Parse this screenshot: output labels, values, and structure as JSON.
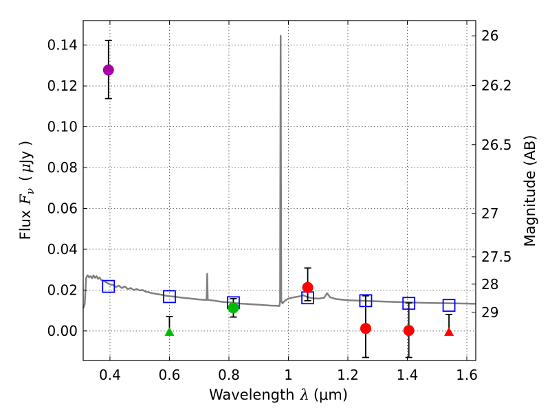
{
  "chart_data": {
    "type": "scatter",
    "xlabel_prefix": "Wavelength",
    "xlabel_symbol": "λ",
    "xlabel_unit": "(μm)",
    "ylabel_prefix": "Flux",
    "ylabel_symbol": "F",
    "ylabel_sub": "ν",
    "ylabel_unit_open": "(",
    "ylabel_unit_mu": "μ",
    "ylabel_unit_rest": "Jy )",
    "y2label": "Magnitude (AB)",
    "xlim": [
      0.31,
      1.63
    ],
    "ylim": [
      -0.0145,
      0.152
    ],
    "xticks": [
      {
        "v": 0.4,
        "label": "0.4"
      },
      {
        "v": 0.6,
        "label": "0.6"
      },
      {
        "v": 0.8,
        "label": "0.8"
      },
      {
        "v": 1.0,
        "label": "1"
      },
      {
        "v": 1.2,
        "label": "1.2"
      },
      {
        "v": 1.4,
        "label": "1.4"
      },
      {
        "v": 1.6,
        "label": "1.6"
      }
    ],
    "yticks": [
      {
        "v": 0.0,
        "label": "0.00"
      },
      {
        "v": 0.02,
        "label": "0.02"
      },
      {
        "v": 0.04,
        "label": "0.04"
      },
      {
        "v": 0.06,
        "label": "0.06"
      },
      {
        "v": 0.08,
        "label": "0.08"
      },
      {
        "v": 0.1,
        "label": "0.10"
      },
      {
        "v": 0.12,
        "label": "0.12"
      },
      {
        "v": 0.14,
        "label": "0.14"
      }
    ],
    "y2ticks": [
      {
        "mag": 26,
        "label": "26"
      },
      {
        "mag": 26.2,
        "label": "26.2"
      },
      {
        "mag": 26.5,
        "label": "26.5"
      },
      {
        "mag": 27,
        "label": "27"
      },
      {
        "mag": 27.5,
        "label": "27.5"
      },
      {
        "mag": 28,
        "label": "28"
      },
      {
        "mag": 29,
        "label": "29"
      }
    ],
    "colors": {
      "sed": "#808080",
      "model": "#0000ff",
      "purple": "#aa00aa",
      "green": "#00bb00",
      "red": "#ff0000",
      "errorbar": "#000000"
    },
    "sed_spectrum": [
      [
        0.31,
        0.011
      ],
      [
        0.315,
        0.013
      ],
      [
        0.32,
        0.026
      ],
      [
        0.325,
        0.0272
      ],
      [
        0.33,
        0.0262
      ],
      [
        0.335,
        0.0268
      ],
      [
        0.34,
        0.0258
      ],
      [
        0.345,
        0.0272
      ],
      [
        0.35,
        0.026
      ],
      [
        0.355,
        0.0268
      ],
      [
        0.36,
        0.0255
      ],
      [
        0.365,
        0.0262
      ],
      [
        0.37,
        0.025
      ],
      [
        0.38,
        0.0245
      ],
      [
        0.39,
        0.0235
      ],
      [
        0.4,
        0.0228
      ],
      [
        0.41,
        0.0225
      ],
      [
        0.42,
        0.0215
      ],
      [
        0.43,
        0.0222
      ],
      [
        0.44,
        0.021
      ],
      [
        0.45,
        0.0218
      ],
      [
        0.46,
        0.0205
      ],
      [
        0.47,
        0.021
      ],
      [
        0.48,
        0.02
      ],
      [
        0.49,
        0.0205
      ],
      [
        0.5,
        0.0198
      ],
      [
        0.51,
        0.02
      ],
      [
        0.52,
        0.0192
      ],
      [
        0.53,
        0.019
      ],
      [
        0.54,
        0.0185
      ],
      [
        0.55,
        0.0183
      ],
      [
        0.56,
        0.018
      ],
      [
        0.57,
        0.0178
      ],
      [
        0.58,
        0.0175
      ],
      [
        0.59,
        0.0172
      ],
      [
        0.6,
        0.017
      ],
      [
        0.62,
        0.0167
      ],
      [
        0.64,
        0.0163
      ],
      [
        0.66,
        0.016
      ],
      [
        0.68,
        0.0157
      ],
      [
        0.7,
        0.0154
      ],
      [
        0.72,
        0.0152
      ],
      [
        0.725,
        0.0152
      ],
      [
        0.727,
        0.028
      ],
      [
        0.729,
        0.0152
      ],
      [
        0.74,
        0.015
      ],
      [
        0.76,
        0.0146
      ],
      [
        0.78,
        0.0142
      ],
      [
        0.8,
        0.014
      ],
      [
        0.82,
        0.0137
      ],
      [
        0.84,
        0.0134
      ],
      [
        0.86,
        0.0132
      ],
      [
        0.88,
        0.013
      ],
      [
        0.9,
        0.0128
      ],
      [
        0.92,
        0.0126
      ],
      [
        0.94,
        0.0124
      ],
      [
        0.96,
        0.0123
      ],
      [
        0.97,
        0.0122
      ],
      [
        0.972,
        0.0144
      ],
      [
        0.974,
        0.1445
      ],
      [
        0.976,
        0.015
      ],
      [
        0.98,
        0.0135
      ],
      [
        0.99,
        0.015
      ],
      [
        1.0,
        0.0158
      ],
      [
        1.02,
        0.0165
      ],
      [
        1.04,
        0.017
      ],
      [
        1.05,
        0.0175
      ],
      [
        1.06,
        0.0168
      ],
      [
        1.08,
        0.016
      ],
      [
        1.1,
        0.0158
      ],
      [
        1.12,
        0.0162
      ],
      [
        1.13,
        0.0185
      ],
      [
        1.14,
        0.0165
      ],
      [
        1.16,
        0.0156
      ],
      [
        1.2,
        0.015
      ],
      [
        1.24,
        0.0148
      ],
      [
        1.28,
        0.0146
      ],
      [
        1.32,
        0.0144
      ],
      [
        1.36,
        0.0142
      ],
      [
        1.4,
        0.014
      ],
      [
        1.44,
        0.0138
      ],
      [
        1.48,
        0.0137
      ],
      [
        1.52,
        0.0136
      ],
      [
        1.56,
        0.0135
      ],
      [
        1.6,
        0.0134
      ],
      [
        1.63,
        0.0133
      ]
    ],
    "model_points": [
      {
        "x": 0.395,
        "y": 0.0218
      },
      {
        "x": 0.6,
        "y": 0.0168
      },
      {
        "x": 0.815,
        "y": 0.0138
      },
      {
        "x": 1.065,
        "y": 0.0162
      },
      {
        "x": 1.26,
        "y": 0.0148
      },
      {
        "x": 1.405,
        "y": 0.0135
      },
      {
        "x": 1.54,
        "y": 0.0125
      }
    ],
    "observed_points": [
      {
        "x": 0.395,
        "y": 0.1278,
        "yerr_low": 0.014,
        "yerr_high": 0.0145,
        "shape": "circle",
        "color": "purple"
      },
      {
        "x": 0.6,
        "y": -0.0005,
        "yerr_low": 0,
        "yerr_high": 0.0075,
        "shape": "triangle",
        "color": "green"
      },
      {
        "x": 0.815,
        "y": 0.0113,
        "yerr_low": 0.0045,
        "yerr_high": 0.0045,
        "shape": "circle",
        "color": "green"
      },
      {
        "x": 1.065,
        "y": 0.0213,
        "yerr_low": 0.0065,
        "yerr_high": 0.0095,
        "shape": "circle",
        "color": "red"
      },
      {
        "x": 1.26,
        "y": 0.0012,
        "yerr_low": 0.0142,
        "yerr_high": 0.016,
        "shape": "circle",
        "color": "red"
      },
      {
        "x": 1.405,
        "y": 0.0002,
        "yerr_low": 0.0132,
        "yerr_high": 0.0135,
        "shape": "circle",
        "color": "red"
      },
      {
        "x": 1.54,
        "y": -0.0005,
        "yerr_low": 0,
        "yerr_high": 0.0085,
        "shape": "triangle",
        "color": "red"
      }
    ]
  }
}
